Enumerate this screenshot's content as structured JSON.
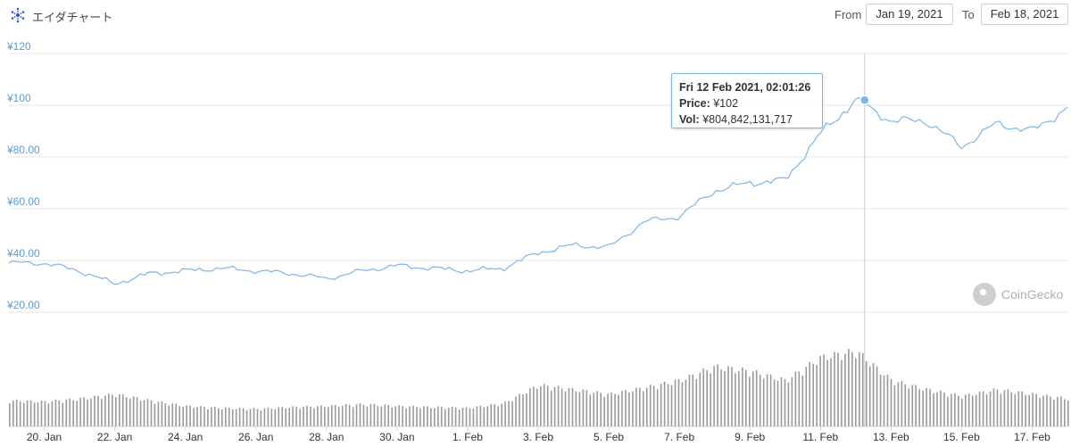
{
  "header": {
    "title": "エイダチャート",
    "from_label": "From",
    "from_value": "Jan 19, 2021",
    "to_label": "To",
    "to_value": "Feb 18, 2021"
  },
  "tooltip": {
    "date": "Fri 12 Feb 2021, 02:01:26",
    "price_label": "Price:",
    "price_value": "¥102",
    "vol_label": "Vol:",
    "vol_value": "¥804,842,131,717"
  },
  "watermark": {
    "text": "CoinGecko"
  },
  "colors": {
    "line": "#7cb5ec",
    "grid": "#e6e6e6",
    "volume": "#9a9a9a",
    "axis_text": "#5a9bd5"
  },
  "chart_data": {
    "type": "line",
    "title": "エイダチャート",
    "x_axis": {
      "type": "date",
      "ticks": [
        "20. Jan",
        "22. Jan",
        "24. Jan",
        "26. Jan",
        "28. Jan",
        "30. Jan",
        "1. Feb",
        "3. Feb",
        "5. Feb",
        "7. Feb",
        "9. Feb",
        "11. Feb",
        "13. Feb",
        "15. Feb",
        "17. Feb"
      ],
      "range": [
        "2021-01-19",
        "2021-02-18"
      ]
    },
    "y_axis": {
      "ticks": [
        "¥20.00",
        "¥40.00",
        "¥60.00",
        "¥80.00",
        "¥100",
        "¥120"
      ],
      "range": [
        20,
        120
      ]
    },
    "grid": true,
    "series": [
      {
        "kind": "price",
        "points": [
          {
            "x": "2021-01-19",
            "y": 39
          },
          {
            "x": "2021-01-20",
            "y": 39
          },
          {
            "x": "2021-01-21",
            "y": 36
          },
          {
            "x": "2021-01-22",
            "y": 31
          },
          {
            "x": "2021-01-23",
            "y": 35
          },
          {
            "x": "2021-01-24",
            "y": 36
          },
          {
            "x": "2021-01-25",
            "y": 37
          },
          {
            "x": "2021-01-26",
            "y": 36
          },
          {
            "x": "2021-01-27",
            "y": 35
          },
          {
            "x": "2021-01-28",
            "y": 33
          },
          {
            "x": "2021-01-29",
            "y": 36
          },
          {
            "x": "2021-01-30",
            "y": 38
          },
          {
            "x": "2021-01-31",
            "y": 37
          },
          {
            "x": "2021-02-01",
            "y": 36
          },
          {
            "x": "2021-02-02",
            "y": 37
          },
          {
            "x": "2021-02-03",
            "y": 43
          },
          {
            "x": "2021-02-04",
            "y": 46
          },
          {
            "x": "2021-02-05",
            "y": 45
          },
          {
            "x": "2021-02-06",
            "y": 55
          },
          {
            "x": "2021-02-07",
            "y": 57
          },
          {
            "x": "2021-02-08",
            "y": 67
          },
          {
            "x": "2021-02-09",
            "y": 70
          },
          {
            "x": "2021-02-10",
            "y": 71
          },
          {
            "x": "2021-02-11",
            "y": 89
          },
          {
            "x": "2021-02-12",
            "y": 102
          },
          {
            "x": "2021-02-13",
            "y": 94
          },
          {
            "x": "2021-02-14",
            "y": 94
          },
          {
            "x": "2021-02-15",
            "y": 84
          },
          {
            "x": "2021-02-16",
            "y": 93
          },
          {
            "x": "2021-02-17",
            "y": 90
          },
          {
            "x": "2021-02-18",
            "y": 99
          }
        ]
      },
      {
        "kind": "volume",
        "points": [
          {
            "x": "2021-01-19",
            "y": 0.28
          },
          {
            "x": "2021-01-20",
            "y": 0.27
          },
          {
            "x": "2021-01-21",
            "y": 0.3
          },
          {
            "x": "2021-01-22",
            "y": 0.35
          },
          {
            "x": "2021-01-23",
            "y": 0.28
          },
          {
            "x": "2021-01-24",
            "y": 0.22
          },
          {
            "x": "2021-01-25",
            "y": 0.2
          },
          {
            "x": "2021-01-26",
            "y": 0.19
          },
          {
            "x": "2021-01-27",
            "y": 0.21
          },
          {
            "x": "2021-01-28",
            "y": 0.22
          },
          {
            "x": "2021-01-29",
            "y": 0.24
          },
          {
            "x": "2021-01-30",
            "y": 0.22
          },
          {
            "x": "2021-01-31",
            "y": 0.21
          },
          {
            "x": "2021-02-01",
            "y": 0.2
          },
          {
            "x": "2021-02-02",
            "y": 0.25
          },
          {
            "x": "2021-02-03",
            "y": 0.45
          },
          {
            "x": "2021-02-04",
            "y": 0.4
          },
          {
            "x": "2021-02-05",
            "y": 0.35
          },
          {
            "x": "2021-02-06",
            "y": 0.42
          },
          {
            "x": "2021-02-07",
            "y": 0.5
          },
          {
            "x": "2021-02-08",
            "y": 0.65
          },
          {
            "x": "2021-02-09",
            "y": 0.6
          },
          {
            "x": "2021-02-10",
            "y": 0.5
          },
          {
            "x": "2021-02-11",
            "y": 0.75
          },
          {
            "x": "2021-02-12",
            "y": 0.82
          },
          {
            "x": "2021-02-13",
            "y": 0.5
          },
          {
            "x": "2021-02-14",
            "y": 0.4
          },
          {
            "x": "2021-02-15",
            "y": 0.33
          },
          {
            "x": "2021-02-16",
            "y": 0.4
          },
          {
            "x": "2021-02-17",
            "y": 0.35
          },
          {
            "x": "2021-02-18",
            "y": 0.3
          }
        ]
      }
    ],
    "highlight": {
      "x": "2021-02-12",
      "y": 102
    }
  }
}
